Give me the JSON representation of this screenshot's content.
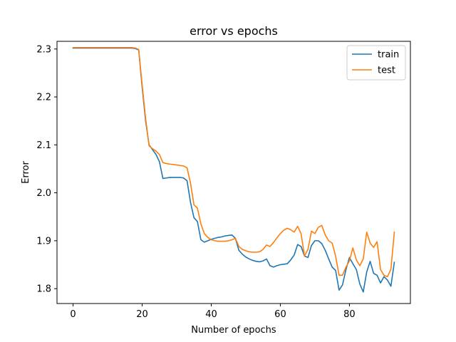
{
  "chart_data": {
    "type": "line",
    "title": "error vs epochs",
    "xlabel": "Number of epochs",
    "ylabel": "Error",
    "xlim": [
      -4.65,
      97.65
    ],
    "ylim": [
      1.769,
      2.316
    ],
    "xticks": [
      0,
      20,
      40,
      60,
      80
    ],
    "yticks": [
      1.8,
      1.9,
      2.0,
      2.1,
      2.2,
      2.3
    ],
    "ytick_labels": [
      "1.8",
      "1.9",
      "2.0",
      "2.1",
      "2.2",
      "2.3"
    ],
    "grid": false,
    "legend_position": "top-right",
    "series": [
      {
        "name": "train",
        "color": "#1f77b4",
        "x": [
          0,
          1,
          2,
          3,
          4,
          5,
          6,
          7,
          8,
          9,
          10,
          11,
          12,
          13,
          14,
          15,
          16,
          17,
          18,
          19,
          20,
          21,
          22,
          23,
          24,
          25,
          26,
          27,
          28,
          29,
          30,
          31,
          32,
          33,
          34,
          35,
          36,
          37,
          38,
          39,
          40,
          41,
          42,
          43,
          44,
          45,
          46,
          47,
          48,
          49,
          50,
          51,
          52,
          53,
          54,
          55,
          56,
          57,
          58,
          59,
          60,
          61,
          62,
          63,
          64,
          65,
          66,
          67,
          68,
          69,
          70,
          71,
          72,
          73,
          74,
          75,
          76,
          77,
          78,
          79,
          80,
          81,
          82,
          83,
          84,
          85,
          86,
          87,
          88,
          89,
          90,
          91,
          92,
          93
        ],
        "y": [
          2.302,
          2.302,
          2.302,
          2.302,
          2.302,
          2.302,
          2.302,
          2.302,
          2.302,
          2.302,
          2.302,
          2.302,
          2.302,
          2.302,
          2.302,
          2.302,
          2.302,
          2.302,
          2.301,
          2.298,
          2.22,
          2.15,
          2.1,
          2.09,
          2.08,
          2.065,
          2.03,
          2.031,
          2.032,
          2.032,
          2.032,
          2.032,
          2.031,
          2.025,
          1.98,
          1.948,
          1.94,
          1.902,
          1.897,
          1.9,
          1.903,
          1.905,
          1.907,
          1.908,
          1.91,
          1.911,
          1.912,
          1.905,
          1.88,
          1.872,
          1.866,
          1.862,
          1.859,
          1.857,
          1.856,
          1.858,
          1.862,
          1.848,
          1.845,
          1.848,
          1.85,
          1.851,
          1.852,
          1.86,
          1.87,
          1.892,
          1.888,
          1.868,
          1.865,
          1.89,
          1.9,
          1.9,
          1.894,
          1.88,
          1.862,
          1.845,
          1.838,
          1.797,
          1.808,
          1.84,
          1.865,
          1.852,
          1.84,
          1.81,
          1.793,
          1.835,
          1.857,
          1.832,
          1.828,
          1.812,
          1.825,
          1.818,
          1.805,
          1.855
        ]
      },
      {
        "name": "test",
        "color": "#ff7f0e",
        "x": [
          0,
          1,
          2,
          3,
          4,
          5,
          6,
          7,
          8,
          9,
          10,
          11,
          12,
          13,
          14,
          15,
          16,
          17,
          18,
          19,
          20,
          21,
          22,
          23,
          24,
          25,
          26,
          27,
          28,
          29,
          30,
          31,
          32,
          33,
          34,
          35,
          36,
          37,
          38,
          39,
          40,
          41,
          42,
          43,
          44,
          45,
          46,
          47,
          48,
          49,
          50,
          51,
          52,
          53,
          54,
          55,
          56,
          57,
          58,
          59,
          60,
          61,
          62,
          63,
          64,
          65,
          66,
          67,
          68,
          69,
          70,
          71,
          72,
          73,
          74,
          75,
          76,
          77,
          78,
          79,
          80,
          81,
          82,
          83,
          84,
          85,
          86,
          87,
          88,
          89,
          90,
          91,
          92,
          93
        ],
        "y": [
          2.303,
          2.303,
          2.303,
          2.303,
          2.303,
          2.303,
          2.303,
          2.303,
          2.303,
          2.303,
          2.303,
          2.303,
          2.303,
          2.303,
          2.303,
          2.303,
          2.303,
          2.303,
          2.302,
          2.299,
          2.225,
          2.155,
          2.098,
          2.092,
          2.087,
          2.08,
          2.063,
          2.061,
          2.06,
          2.059,
          2.058,
          2.057,
          2.056,
          2.052,
          2.02,
          1.975,
          1.968,
          1.935,
          1.915,
          1.907,
          1.902,
          1.9,
          1.899,
          1.899,
          1.899,
          1.9,
          1.902,
          1.905,
          1.888,
          1.882,
          1.879,
          1.877,
          1.876,
          1.876,
          1.877,
          1.882,
          1.891,
          1.888,
          1.896,
          1.906,
          1.915,
          1.922,
          1.926,
          1.923,
          1.918,
          1.93,
          1.915,
          1.868,
          1.882,
          1.92,
          1.915,
          1.928,
          1.932,
          1.912,
          1.9,
          1.895,
          1.868,
          1.828,
          1.828,
          1.845,
          1.858,
          1.885,
          1.86,
          1.848,
          1.862,
          1.918,
          1.895,
          1.886,
          1.898,
          1.84,
          1.828,
          1.825,
          1.84,
          1.918
        ]
      }
    ]
  }
}
